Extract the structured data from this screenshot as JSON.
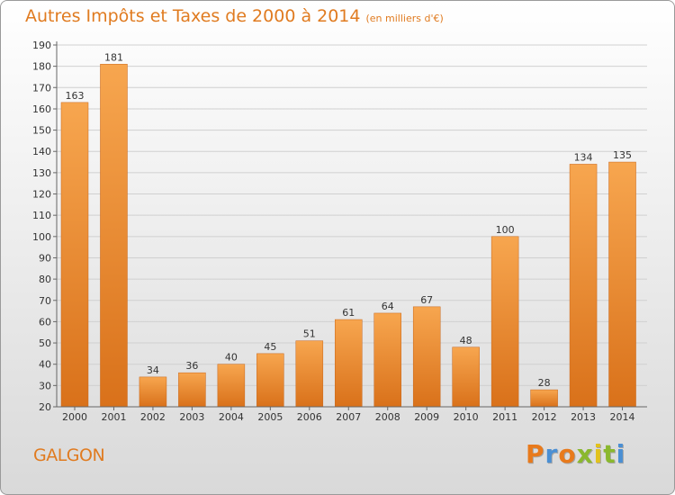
{
  "chart_data": {
    "type": "bar",
    "title": "Autres Impôts et Taxes de 2000 à 2014",
    "subtitle": "(en milliers d'€)",
    "categories": [
      "2000",
      "2001",
      "2002",
      "2003",
      "2004",
      "2005",
      "2006",
      "2007",
      "2008",
      "2009",
      "2010",
      "2011",
      "2012",
      "2013",
      "2014"
    ],
    "values": [
      163,
      181,
      34,
      36,
      40,
      45,
      51,
      61,
      64,
      67,
      48,
      100,
      28,
      134,
      135
    ],
    "ylim": [
      20,
      190
    ],
    "yticks": [
      20,
      30,
      40,
      50,
      60,
      70,
      80,
      90,
      100,
      110,
      120,
      130,
      140,
      150,
      160,
      170,
      180,
      190
    ],
    "grid": true,
    "xlabel": "",
    "ylabel": "",
    "colors": {
      "bar_top": "#f7a64f",
      "bar_bottom": "#d9711a",
      "title": "#e07b20",
      "grid": "#d0d0d0"
    }
  },
  "footer": {
    "commune": "GALGON",
    "logo": "Proxiti",
    "logo_colors": [
      "#e87a1c",
      "#4a8fd4",
      "#e87a1c",
      "#8ab82e",
      "#e2c21d",
      "#8ab82e",
      "#4a8fd4"
    ]
  }
}
